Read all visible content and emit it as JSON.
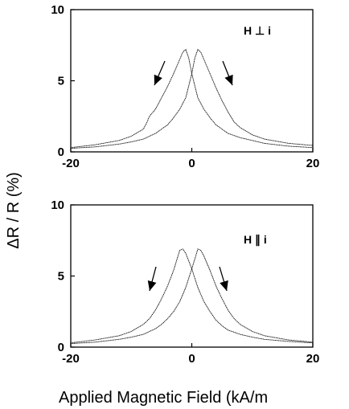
{
  "chart_data": [
    {
      "type": "line",
      "title": "",
      "annotation": "H ⊥ i",
      "xlim": [
        -20,
        20
      ],
      "ylim": [
        0,
        10
      ],
      "x_ticks": [
        -20,
        0,
        20
      ],
      "y_ticks": [
        0,
        5,
        10
      ],
      "grid": false,
      "series": [
        {
          "sweep": "down",
          "x": [
            -20,
            -16,
            -12,
            -10,
            -8,
            -7.5,
            -7,
            -6,
            -5,
            -4,
            -3,
            -2,
            -1.5,
            -1,
            -0.5,
            0,
            1,
            2,
            3,
            4,
            5,
            6,
            8,
            10,
            12,
            16,
            20
          ],
          "y": [
            0.3,
            0.5,
            0.8,
            1.1,
            1.6,
            2.0,
            2.5,
            3.0,
            3.8,
            4.6,
            5.5,
            6.5,
            7.0,
            7.2,
            6.6,
            5.5,
            3.8,
            3.0,
            2.4,
            1.9,
            1.6,
            1.3,
            1.0,
            0.8,
            0.6,
            0.4,
            0.3
          ]
        },
        {
          "sweep": "up",
          "x": [
            -20,
            -16,
            -12,
            -10,
            -8,
            -6,
            -5,
            -4,
            -3,
            -2,
            -1,
            0,
            0.5,
            1,
            1.5,
            2,
            3,
            4,
            5,
            6,
            7,
            8,
            10,
            12,
            16,
            20
          ],
          "y": [
            0.25,
            0.35,
            0.55,
            0.7,
            0.9,
            1.3,
            1.6,
            1.9,
            2.4,
            3.0,
            3.8,
            5.5,
            6.6,
            7.2,
            7.0,
            6.5,
            5.5,
            4.5,
            3.6,
            2.8,
            2.1,
            1.7,
            1.2,
            0.9,
            0.6,
            0.45
          ]
        }
      ]
    },
    {
      "type": "line",
      "title": "",
      "annotation": "H ∥ i",
      "xlim": [
        -20,
        20
      ],
      "ylim": [
        0,
        10
      ],
      "x_ticks": [
        -20,
        0,
        20
      ],
      "y_ticks": [
        0,
        5,
        10
      ],
      "grid": false,
      "series": [
        {
          "sweep": "down",
          "x": [
            -20,
            -16,
            -12,
            -10,
            -8,
            -7,
            -6,
            -5,
            -4,
            -3,
            -2.5,
            -2,
            -1.5,
            -1,
            0,
            1,
            2,
            3,
            4,
            5,
            6,
            8,
            10,
            12,
            16,
            20
          ],
          "y": [
            0.3,
            0.5,
            0.8,
            1.1,
            1.6,
            2.0,
            2.6,
            3.4,
            4.3,
            5.4,
            6.1,
            6.8,
            6.9,
            6.6,
            5.5,
            4.2,
            3.2,
            2.5,
            1.9,
            1.5,
            1.2,
            0.9,
            0.7,
            0.55,
            0.4,
            0.3
          ]
        },
        {
          "sweep": "up",
          "x": [
            -20,
            -16,
            -12,
            -10,
            -8,
            -6,
            -5,
            -4,
            -3,
            -2,
            -1,
            0,
            0.5,
            1,
            1.5,
            2,
            3,
            4,
            5,
            6,
            7,
            8,
            10,
            12,
            16,
            20
          ],
          "y": [
            0.25,
            0.35,
            0.55,
            0.7,
            0.9,
            1.3,
            1.6,
            2.0,
            2.5,
            3.2,
            4.2,
            5.5,
            6.2,
            6.9,
            6.8,
            6.4,
            5.4,
            4.3,
            3.4,
            2.6,
            2.0,
            1.6,
            1.1,
            0.8,
            0.5,
            0.35
          ]
        }
      ]
    }
  ],
  "shared": {
    "ylabel": "ΔR / R (%)",
    "xlabel": "Applied Magnetic Field (kA/m"
  },
  "colors": {
    "ink": "#000000",
    "background": "#ffffff"
  }
}
